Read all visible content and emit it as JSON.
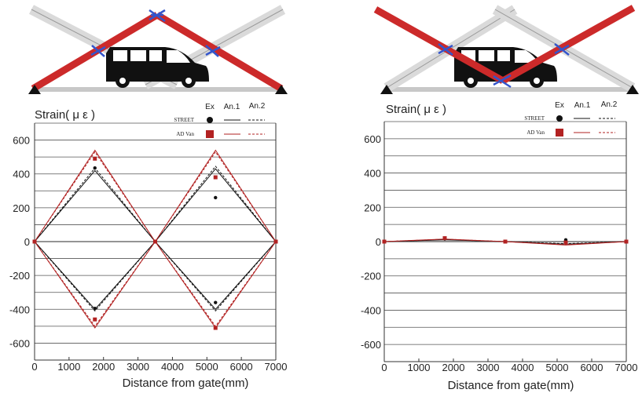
{
  "colors": {
    "black_series": "#111111",
    "red_series": "#b22222",
    "red_bar": "#cc2a2a",
    "grey_bar": "#dcdcdc",
    "marker_blue": "#3355cc",
    "gridline": "#555555"
  },
  "icons": [
    "van-icon",
    "hinge-support-icon",
    "diagonal-bar-red",
    "diagonal-bar-grey",
    "gauge-marker-icon"
  ],
  "chart_data": [
    {
      "type": "line",
      "ylabel": "Strain( μ ε )",
      "xlabel": "Distance from gate(mm)",
      "xlim": [
        0,
        7000
      ],
      "ylim": [
        -700,
        700
      ],
      "x_ticks": [
        0,
        1000,
        2000,
        3000,
        4000,
        5000,
        6000,
        7000
      ],
      "y_ticks": [
        -600,
        -400,
        -200,
        0,
        200,
        400,
        600
      ],
      "grid": "horizontal",
      "legend": {
        "placement": "top-right",
        "headers": [
          "Ex",
          "An.1",
          "An.2"
        ],
        "rows": [
          "STREET",
          "AD Van"
        ]
      },
      "series": [
        {
          "name": "STREET An.1",
          "color": "black",
          "style": "solid",
          "lines": [
            {
              "x": [
                0,
                1750,
                3500,
                5250,
                7000
              ],
              "y": [
                0,
                420,
                0,
                430,
                0
              ]
            },
            {
              "x": [
                0,
                1750,
                3500,
                5250,
                7000
              ],
              "y": [
                0,
                -400,
                0,
                -400,
                0
              ]
            }
          ]
        },
        {
          "name": "STREET An.2",
          "color": "black",
          "style": "dashed",
          "lines": [
            {
              "x": [
                0,
                1750,
                3500,
                5250,
                7000
              ],
              "y": [
                0,
                435,
                0,
                445,
                0
              ]
            },
            {
              "x": [
                0,
                1750,
                3500,
                5250,
                7000
              ],
              "y": [
                0,
                -410,
                0,
                -410,
                0
              ]
            }
          ]
        },
        {
          "name": "AD Van An.1",
          "color": "red",
          "style": "solid",
          "lines": [
            {
              "x": [
                0,
                1750,
                3500,
                5250,
                7000
              ],
              "y": [
                0,
                540,
                0,
                540,
                0
              ]
            },
            {
              "x": [
                0,
                1750,
                3500,
                5250,
                7000
              ],
              "y": [
                0,
                -510,
                0,
                -510,
                0
              ]
            }
          ]
        },
        {
          "name": "AD Van An.2",
          "color": "red",
          "style": "dashed",
          "lines": [
            {
              "x": [
                0,
                1750,
                3500,
                5250,
                7000
              ],
              "y": [
                0,
                530,
                0,
                530,
                0
              ]
            },
            {
              "x": [
                0,
                1750,
                3500,
                5250,
                7000
              ],
              "y": [
                0,
                -500,
                0,
                -500,
                0
              ]
            }
          ]
        },
        {
          "name": "STREET Ex",
          "color": "black",
          "marker": "circle",
          "points": {
            "x": [
              0,
              1750,
              1750,
              3500,
              5250,
              5250,
              7000
            ],
            "y": [
              0,
              435,
              -395,
              0,
              260,
              -360,
              0
            ]
          }
        },
        {
          "name": "AD Van Ex",
          "color": "red",
          "marker": "square",
          "points": {
            "x": [
              0,
              1750,
              1750,
              3500,
              5250,
              5250,
              7000
            ],
            "y": [
              0,
              490,
              -460,
              0,
              380,
              -510,
              0
            ]
          }
        }
      ]
    },
    {
      "type": "line",
      "ylabel": "Strain( μ ε )",
      "xlabel": "Distance from gate(mm)",
      "xlim": [
        0,
        7000
      ],
      "ylim": [
        -700,
        700
      ],
      "x_ticks": [
        0,
        1000,
        2000,
        3000,
        4000,
        5000,
        6000,
        7000
      ],
      "y_ticks": [
        -600,
        -400,
        -200,
        0,
        200,
        400,
        600
      ],
      "grid": "horizontal",
      "legend": {
        "placement": "top-right",
        "headers": [
          "Ex",
          "An.1",
          "An.2"
        ],
        "rows": [
          "STREET",
          "AD Van"
        ]
      },
      "series": [
        {
          "name": "STREET An.1",
          "color": "black",
          "style": "solid",
          "lines": [
            {
              "x": [
                0,
                1750,
                3500,
                5250,
                7000
              ],
              "y": [
                0,
                10,
                0,
                -15,
                0
              ]
            }
          ]
        },
        {
          "name": "STREET An.2",
          "color": "black",
          "style": "dashed",
          "lines": [
            {
              "x": [
                0,
                1750,
                3500,
                5250,
                7000
              ],
              "y": [
                0,
                12,
                0,
                -12,
                0
              ]
            }
          ]
        },
        {
          "name": "AD Van An.1",
          "color": "red",
          "style": "solid",
          "lines": [
            {
              "x": [
                0,
                1750,
                3500,
                5250,
                7000
              ],
              "y": [
                0,
                15,
                0,
                -20,
                0
              ]
            }
          ]
        },
        {
          "name": "AD Van An.2",
          "color": "red",
          "style": "dashed",
          "lines": [
            {
              "x": [
                0,
                1750,
                3500,
                5250,
                7000
              ],
              "y": [
                0,
                14,
                0,
                -18,
                0
              ]
            }
          ]
        },
        {
          "name": "STREET Ex",
          "color": "black",
          "marker": "circle",
          "points": {
            "x": [
              0,
              1750,
              3500,
              5250,
              7000
            ],
            "y": [
              0,
              15,
              0,
              10,
              0
            ]
          }
        },
        {
          "name": "AD Van Ex",
          "color": "red",
          "marker": "square",
          "points": {
            "x": [
              0,
              1750,
              3500,
              5250,
              7000
            ],
            "y": [
              0,
              20,
              0,
              -5,
              0
            ]
          }
        }
      ]
    }
  ]
}
